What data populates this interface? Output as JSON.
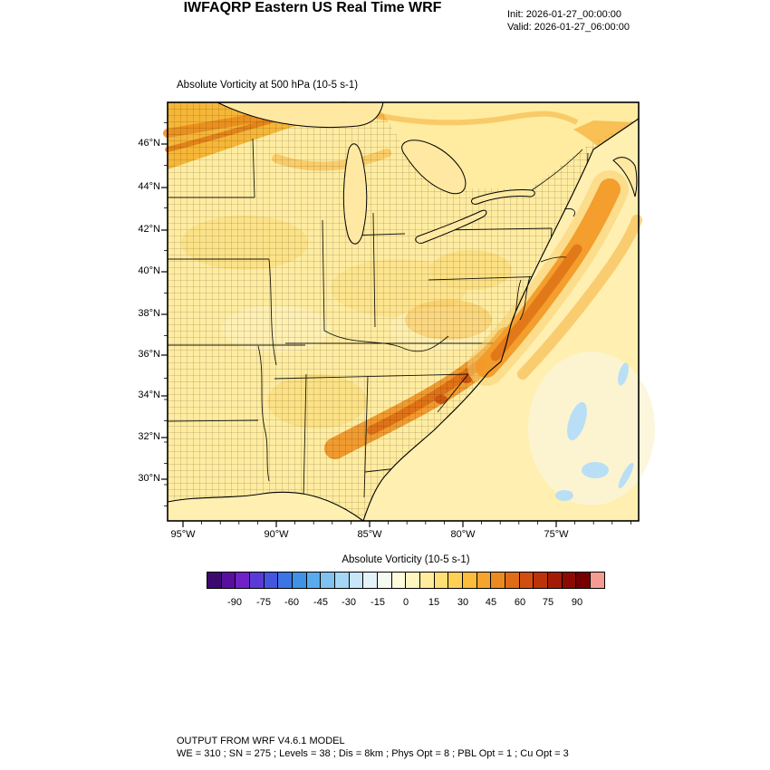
{
  "header": {
    "title": "IWFAQRP Eastern US Real Time WRF",
    "init": "Init: 2026-01-27_00:00:00",
    "valid": "Valid: 2026-01-27_06:00:00"
  },
  "plot": {
    "subtitle": "Absolute Vorticity at 500 hPa  (10-5 s-1)",
    "lat_ticks": [
      "46°N",
      "44°N",
      "42°N",
      "40°N",
      "38°N",
      "36°N",
      "34°N",
      "32°N",
      "30°N"
    ],
    "lon_ticks": [
      "95°W",
      "90°W",
      "85°W",
      "80°W",
      "75°W"
    ]
  },
  "colorbar": {
    "title": "Absolute Vorticity  (10-5 s-1)",
    "tick_labels": [
      "-90",
      "-75",
      "-60",
      "-45",
      "-30",
      "-15",
      "0",
      "15",
      "30",
      "45",
      "60",
      "75",
      "90"
    ],
    "colors": [
      "#3C0A6E",
      "#5A0EA0",
      "#7022C8",
      "#5A3AD8",
      "#4455E0",
      "#3B74E4",
      "#3F92E6",
      "#58ABEC",
      "#7FC2F0",
      "#A5D6F5",
      "#C8E6F8",
      "#E4F2FA",
      "#F5FAF0",
      "#FDFBDC",
      "#FFF5BE",
      "#FFEC9C",
      "#FFE077",
      "#FFD055",
      "#FCBC3C",
      "#F5A52E",
      "#EC8A22",
      "#E06C18",
      "#D14E10",
      "#BC330A",
      "#A41B05",
      "#8C0A01",
      "#760000",
      "#F49C94"
    ]
  },
  "footer": {
    "line1": "OUTPUT FROM WRF V4.6.1 MODEL",
    "line2": "WE = 310 ; SN = 275 ; Levels = 38 ; Dis = 8km ; Phys Opt = 8 ; PBL Opt = 1 ; Cu Opt = 3"
  },
  "map_colors": {
    "background_land": "#FFECA0",
    "ocean": "#FFEFB0",
    "positive_band_orange": "#F09222",
    "strong_core_orange": "#DE6E14",
    "negative_patch_blue": "#B8DFF6"
  },
  "chart_data": {
    "type": "heatmap",
    "title": "Absolute Vorticity at 500 hPa (10-5 s-1)",
    "model_header": "IWFAQRP Eastern US Real Time WRF",
    "init_time": "2026-01-27_00:00:00",
    "valid_time": "2026-01-27_06:00:00",
    "x_ticks": [
      "95°W",
      "90°W",
      "85°W",
      "80°W",
      "75°W"
    ],
    "y_ticks": [
      "46°N",
      "44°N",
      "42°N",
      "40°N",
      "38°N",
      "36°N",
      "34°N",
      "32°N",
      "30°N"
    ],
    "colorbar": {
      "label": "Absolute Vorticity (10-5 s-1)",
      "ticks": [
        -90,
        -75,
        -60,
        -45,
        -30,
        -15,
        0,
        15,
        30,
        45,
        60,
        75,
        90
      ],
      "displayed_range": [
        -105,
        105
      ]
    },
    "field_summary": [
      {
        "region": "most of eastern US land",
        "value_range": [
          5,
          20
        ]
      },
      {
        "region": "northwest corner band across upper Midwest / Great Lakes",
        "value_range": [
          25,
          45
        ]
      },
      {
        "region": "southeast coastal jet streak from Georgia/Carolinas northeast offshore",
        "value_range": [
          25,
          50
        ]
      },
      {
        "region": "scattered western Atlantic patches (light blue)",
        "value_range": [
          -15,
          -5
        ]
      }
    ]
  }
}
